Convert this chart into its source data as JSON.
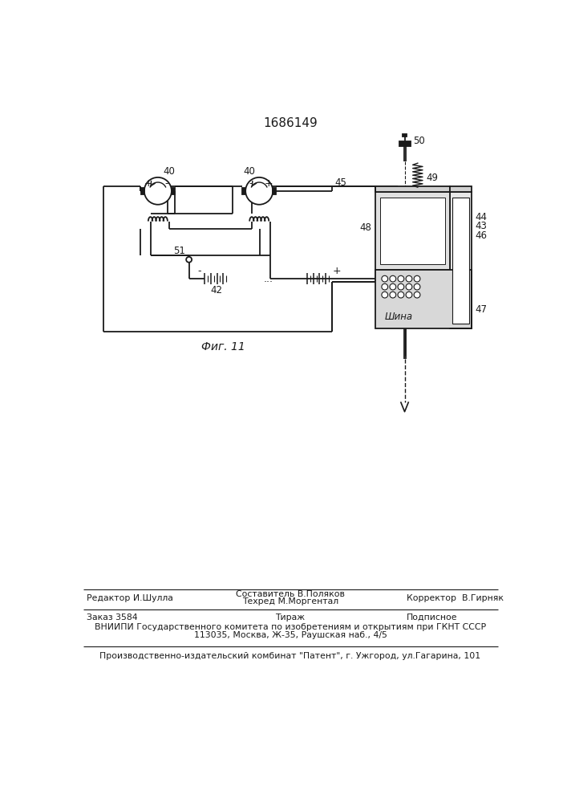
{
  "title": "1686149",
  "fig_label": "Фиг. 11",
  "shina_label": "Шина",
  "bg_color": "#ffffff",
  "line_color": "#1a1a1a",
  "lw": 1.3,
  "footer": {
    "line1_left": "Редактор И.Шулла",
    "line1_center_top": "Составитель В.Поляков",
    "line1_center_bot": "Техред М.Моргентал",
    "line1_right": "Корректор  В.Гирняк",
    "line2_left": "Заказ 3584",
    "line2_center": "Тираж",
    "line2_right": "Подписное",
    "line3": "ВНИИПИ Государственного комитета по изобретениям и открытиям при ГКНТ СССР",
    "line4": "113035, Москва, Ж-35, Раушская наб., 4/5",
    "line5": "Производственно-издательский комбинат \"Патент\", г. Ужгород, ул.Гагарина, 101"
  }
}
